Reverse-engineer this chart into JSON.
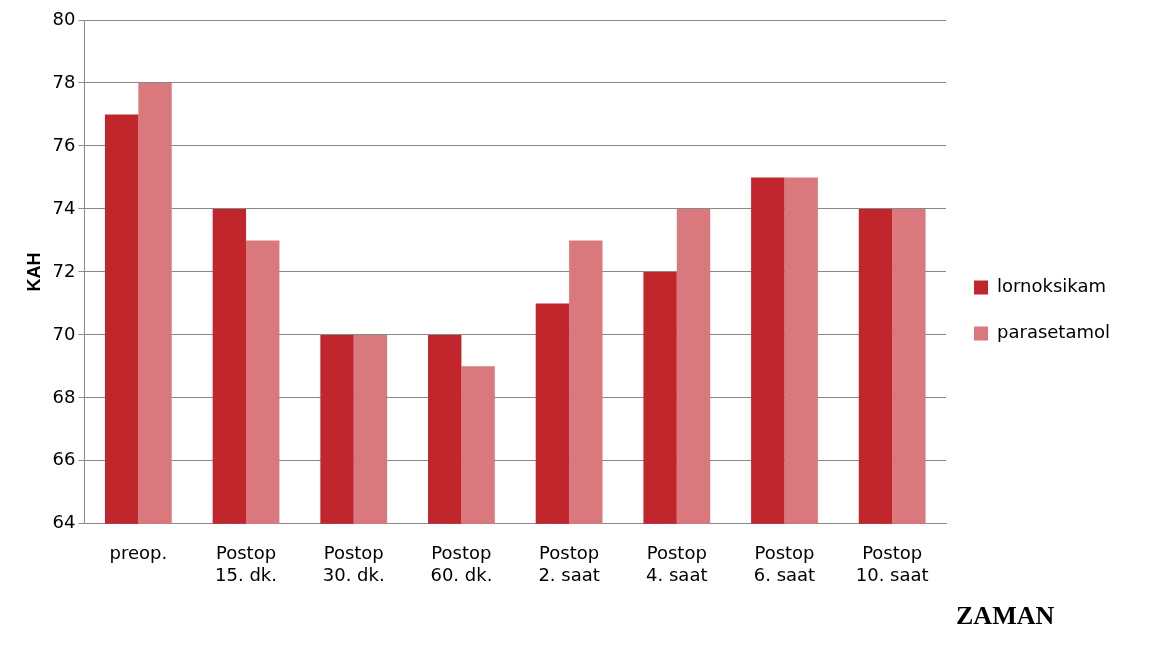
{
  "chart_data": {
    "type": "bar",
    "xlabel": "ZAMAN",
    "ylabel": "KAH",
    "categories": [
      "preop.",
      "Postop\n15. dk.",
      "Postop\n30. dk.",
      "Postop\n60. dk.",
      "Postop\n2. saat",
      "Postop\n4. saat",
      "Postop\n6. saat",
      "Postop\n10. saat"
    ],
    "series": [
      {
        "name": "lornoksikam",
        "color": "#c0262c",
        "values": [
          77,
          74,
          70,
          70,
          71,
          72,
          75,
          74
        ]
      },
      {
        "name": "parasetamol",
        "color": "#d9797d",
        "values": [
          78,
          73,
          70,
          69,
          73,
          74,
          75,
          74
        ]
      }
    ],
    "ylim": [
      64,
      80
    ],
    "yticks": [
      64,
      66,
      68,
      70,
      72,
      74,
      76,
      78,
      80
    ],
    "grid": "y",
    "legend": "right"
  }
}
